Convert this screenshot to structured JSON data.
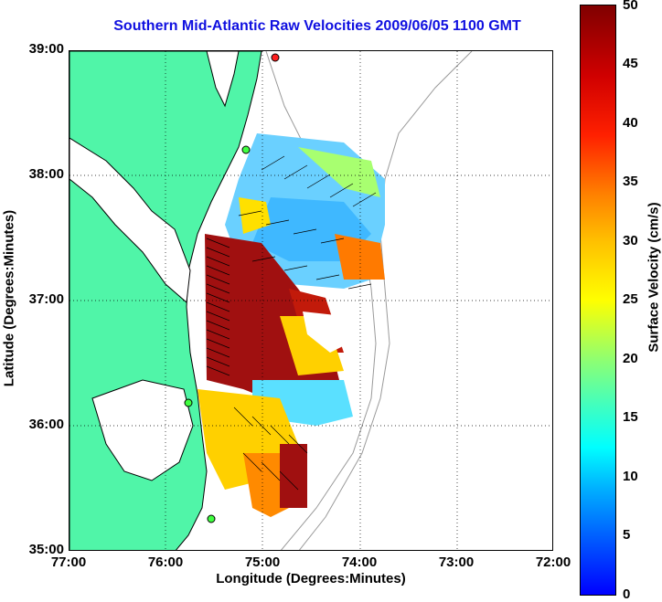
{
  "title": "Southern Mid-Atlantic Raw Velocities 2009/06/05 1100 GMT",
  "x_axis": {
    "label": "Longitude (Degrees:Minutes)",
    "ticks": [
      "77:00",
      "76:00",
      "75:00",
      "74:00",
      "73:00",
      "72:00"
    ]
  },
  "y_axis": {
    "label": "Latitude (Degrees:Minutes)",
    "ticks": [
      "39:00",
      "38:00",
      "37:00",
      "36:00",
      "35:00"
    ]
  },
  "colorbar": {
    "label": "Surface Velocity (cm/s)",
    "ticks": [
      "50",
      "45",
      "40",
      "35",
      "30",
      "25",
      "20",
      "15",
      "10",
      "5",
      "0"
    ],
    "range": [
      0,
      50
    ]
  },
  "colors": {
    "land": "#50f5a8",
    "coastline": "#000000",
    "bathymetry": "#9a9a9a",
    "title": "#1010e0"
  }
}
